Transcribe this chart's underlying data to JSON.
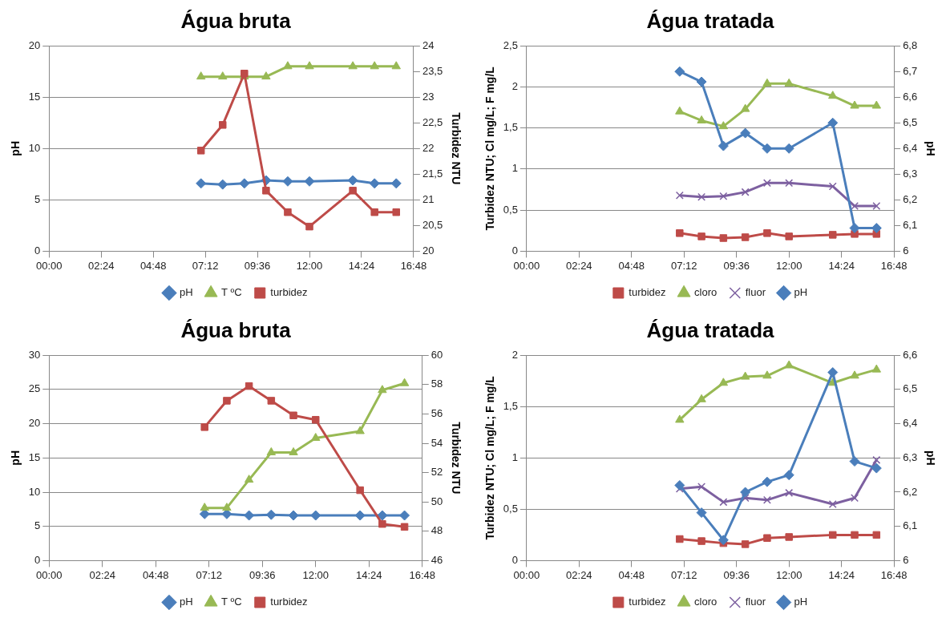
{
  "chart_data": [
    {
      "type": "line",
      "title": "Água bruta",
      "ylabel": "pH",
      "y2label": "Turbidez NTU",
      "grid": "y",
      "legend": "bottom",
      "line_style": "solid",
      "xlim": [
        0,
        16.8
      ],
      "xticks": [
        {
          "value": 0,
          "label": "00:00"
        },
        {
          "value": 2.4,
          "label": "02:24"
        },
        {
          "value": 4.8,
          "label": "04:48"
        },
        {
          "value": 7.2,
          "label": "07:12"
        },
        {
          "value": 9.6,
          "label": "09:36"
        },
        {
          "value": 12,
          "label": "12:00"
        },
        {
          "value": 14.4,
          "label": "14:24"
        },
        {
          "value": 16.8,
          "label": "16:48"
        }
      ],
      "x": [
        7,
        8,
        9,
        10,
        11,
        12,
        14,
        15,
        16
      ],
      "ylim": [
        0,
        20
      ],
      "yticks": [
        0,
        5,
        10,
        15,
        20
      ],
      "y2lim": [
        20,
        24
      ],
      "y2ticks": [
        20,
        {
          "value": 20.5,
          "label": "20,5"
        },
        21,
        {
          "value": 21.5,
          "label": "21,5"
        },
        22,
        {
          "value": 22.5,
          "label": "22,5"
        },
        23,
        {
          "value": 23.5,
          "label": "23,5"
        },
        24
      ],
      "series": [
        {
          "name": "pH",
          "color": "#4a7ebb",
          "marker": "diamond",
          "values": [
            6.6,
            6.5,
            6.6,
            6.9,
            6.8,
            6.8,
            6.9,
            6.6,
            6.6
          ]
        },
        {
          "name": "T ºC",
          "color": "#98b954",
          "marker": "triangle",
          "axis": "y2",
          "values": [
            23.4,
            23.4,
            23.4,
            23.4,
            23.6,
            23.6,
            23.6,
            23.6,
            23.6
          ]
        },
        {
          "name": "turbidez",
          "color": "#be4b48",
          "marker": "square",
          "values": [
            9.8,
            12.3,
            17.3,
            5.9,
            3.8,
            2.4,
            5.9,
            3.8,
            3.8
          ]
        }
      ]
    },
    {
      "type": "line",
      "title": "Água tratada",
      "ylabel": "Turbidez NTU; Cl mg/L; F mg/L",
      "y2label": "pH",
      "grid": "y",
      "legend": "bottom",
      "line_style": "solid",
      "xlim": [
        0,
        16.8
      ],
      "xticks": [
        {
          "value": 0,
          "label": "00:00"
        },
        {
          "value": 2.4,
          "label": "02:24"
        },
        {
          "value": 4.8,
          "label": "04:48"
        },
        {
          "value": 7.2,
          "label": "07:12"
        },
        {
          "value": 9.6,
          "label": "09:36"
        },
        {
          "value": 12,
          "label": "12:00"
        },
        {
          "value": 14.4,
          "label": "14:24"
        },
        {
          "value": 16.8,
          "label": "16:48"
        }
      ],
      "x": [
        7,
        8,
        9,
        10,
        11,
        12,
        14,
        15,
        16
      ],
      "ylim": [
        0,
        2.5
      ],
      "yticks": [
        0,
        {
          "value": 0.5,
          "label": "0,5"
        },
        1,
        {
          "value": 1.5,
          "label": "1,5"
        },
        2,
        {
          "value": 2.5,
          "label": "2,5"
        }
      ],
      "y2lim": [
        6,
        6.8
      ],
      "y2ticks": [
        6,
        {
          "value": 6.1,
          "label": "6,1"
        },
        {
          "value": 6.2,
          "label": "6,2"
        },
        {
          "value": 6.3,
          "label": "6,3"
        },
        {
          "value": 6.4,
          "label": "6,4"
        },
        {
          "value": 6.5,
          "label": "6,5"
        },
        {
          "value": 6.6,
          "label": "6,6"
        },
        {
          "value": 6.7,
          "label": "6,7"
        },
        {
          "value": 6.8,
          "label": "6,8"
        }
      ],
      "series": [
        {
          "name": "turbidez",
          "color": "#be4b48",
          "marker": "square",
          "values": [
            0.22,
            0.18,
            0.16,
            0.17,
            0.22,
            0.18,
            0.2,
            0.21,
            0.21
          ]
        },
        {
          "name": "cloro",
          "color": "#98b954",
          "marker": "triangle",
          "values": [
            1.7,
            1.59,
            1.52,
            1.73,
            2.04,
            2.04,
            1.89,
            1.77,
            1.77
          ]
        },
        {
          "name": "fluor",
          "color": "#7d60a0",
          "marker": "cross",
          "values": [
            0.68,
            0.66,
            0.67,
            0.72,
            0.83,
            0.83,
            0.79,
            0.55,
            0.55
          ]
        },
        {
          "name": "pH",
          "color": "#4a7ebb",
          "marker": "diamond",
          "axis": "y2",
          "values": [
            6.7,
            6.66,
            6.41,
            6.46,
            6.4,
            6.4,
            6.5,
            6.09,
            6.09
          ]
        }
      ]
    },
    {
      "type": "line",
      "title": "Água bruta",
      "ylabel": "pH",
      "y2label": "Turbidez NTU",
      "grid": "y",
      "legend": "bottom",
      "line_style": "solid",
      "xlim": [
        0,
        16.8
      ],
      "xticks": [
        {
          "value": 0,
          "label": "00:00"
        },
        {
          "value": 2.4,
          "label": "02:24"
        },
        {
          "value": 4.8,
          "label": "04:48"
        },
        {
          "value": 7.2,
          "label": "07:12"
        },
        {
          "value": 9.6,
          "label": "09:36"
        },
        {
          "value": 12,
          "label": "12:00"
        },
        {
          "value": 14.4,
          "label": "14:24"
        },
        {
          "value": 16.8,
          "label": "16:48"
        }
      ],
      "x": [
        7,
        8,
        9,
        10,
        11,
        12,
        14,
        15,
        16
      ],
      "ylim": [
        0,
        30
      ],
      "yticks": [
        0,
        5,
        10,
        15,
        20,
        25,
        30
      ],
      "y2lim": [
        46,
        60
      ],
      "y2ticks": [
        46,
        48,
        50,
        52,
        54,
        56,
        58,
        60
      ],
      "series": [
        {
          "name": "pH",
          "color": "#4a7ebb",
          "marker": "diamond",
          "values": [
            6.8,
            6.8,
            6.6,
            6.7,
            6.6,
            6.6,
            6.6,
            6.6,
            6.6
          ]
        },
        {
          "name": "T ºC",
          "color": "#98b954",
          "marker": "triangle",
          "values": [
            7.7,
            7.7,
            11.8,
            15.8,
            15.8,
            17.9,
            18.9,
            24.9,
            25.9
          ]
        },
        {
          "name": "turbidez",
          "color": "#be4b48",
          "marker": "square",
          "axis": "y2",
          "values": [
            55.1,
            56.9,
            57.9,
            56.9,
            55.9,
            55.6,
            50.8,
            48.5,
            48.3
          ]
        }
      ]
    },
    {
      "type": "line",
      "title": "Água tratada",
      "ylabel": "Turbidez NTU; Cl mg/L; F mg/L",
      "y2label": "pH",
      "grid": "y",
      "legend": "bottom",
      "line_style": "solid",
      "xlim": [
        0,
        16.8
      ],
      "xticks": [
        {
          "value": 0,
          "label": "00:00"
        },
        {
          "value": 2.4,
          "label": "02:24"
        },
        {
          "value": 4.8,
          "label": "04:48"
        },
        {
          "value": 7.2,
          "label": "07:12"
        },
        {
          "value": 9.6,
          "label": "09:36"
        },
        {
          "value": 12,
          "label": "12:00"
        },
        {
          "value": 14.4,
          "label": "14:24"
        },
        {
          "value": 16.8,
          "label": "16:48"
        }
      ],
      "x": [
        7,
        8,
        9,
        10,
        11,
        12,
        14,
        15,
        16
      ],
      "ylim": [
        0,
        2
      ],
      "yticks": [
        0,
        {
          "value": 0.5,
          "label": "0,5"
        },
        1,
        {
          "value": 1.5,
          "label": "1,5"
        },
        2
      ],
      "y2lim": [
        6,
        6.6
      ],
      "y2ticks": [
        6,
        {
          "value": 6.1,
          "label": "6,1"
        },
        {
          "value": 6.2,
          "label": "6,2"
        },
        {
          "value": 6.3,
          "label": "6,3"
        },
        {
          "value": 6.4,
          "label": "6,4"
        },
        {
          "value": 6.5,
          "label": "6,5"
        },
        {
          "value": 6.6,
          "label": "6,6"
        }
      ],
      "series": [
        {
          "name": "turbidez",
          "color": "#be4b48",
          "marker": "square",
          "values": [
            0.21,
            0.19,
            0.17,
            0.16,
            0.22,
            0.23,
            0.25,
            0.25,
            0.25
          ]
        },
        {
          "name": "cloro",
          "color": "#98b954",
          "marker": "triangle",
          "values": [
            1.37,
            1.57,
            1.73,
            1.79,
            1.8,
            1.9,
            1.73,
            1.8,
            1.86
          ]
        },
        {
          "name": "fluor",
          "color": "#7d60a0",
          "marker": "cross",
          "values": [
            0.7,
            0.72,
            0.57,
            0.61,
            0.59,
            0.66,
            0.55,
            0.61,
            0.98
          ]
        },
        {
          "name": "pH",
          "color": "#4a7ebb",
          "marker": "diamond",
          "axis": "y2",
          "values": [
            6.22,
            6.14,
            6.06,
            6.2,
            6.23,
            6.25,
            6.55,
            6.29,
            6.27
          ]
        }
      ]
    }
  ]
}
